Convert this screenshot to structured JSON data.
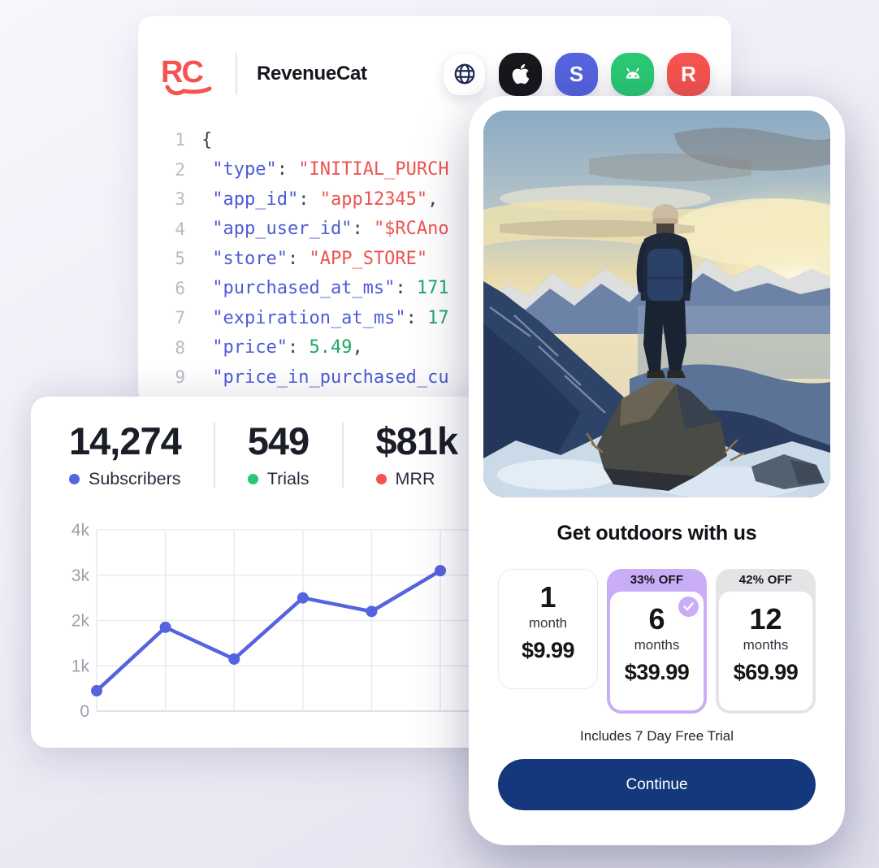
{
  "colors": {
    "blue": "#5563DE",
    "green": "#2BC873",
    "red": "#F4534F",
    "navy_button": "#14387B",
    "purple_badge": "#C9ADF6",
    "gray_badge": "#E4E4E6",
    "code_key": "#4D5CD5",
    "code_string": "#EE5350",
    "code_number": "#1FA865",
    "code_punct": "#3A4151",
    "line_number": "#B6BAC4",
    "axis_label": "#9AA1AD",
    "grid_line": "#E9EBF2",
    "axis_line": "#D5D8E2",
    "ink": "#15171E"
  },
  "header": {
    "logo_text": "RC",
    "brand": "RevenueCat",
    "icons": [
      {
        "name": "globe-icon"
      },
      {
        "name": "apple-icon"
      },
      {
        "name": "stripe-icon",
        "letter": "S"
      },
      {
        "name": "android-icon"
      },
      {
        "name": "revenuecat-icon",
        "letter": "R"
      }
    ]
  },
  "code": {
    "lines": [
      {
        "n": "1",
        "tokens": [
          {
            "t": "p",
            "v": "{"
          }
        ]
      },
      {
        "n": "2",
        "tokens": [
          {
            "t": "k",
            "v": " \"type\""
          },
          {
            "t": "p",
            "v": ": "
          },
          {
            "t": "s",
            "v": "\"INITIAL_PURCH"
          }
        ]
      },
      {
        "n": "3",
        "tokens": [
          {
            "t": "k",
            "v": " \"app_id\""
          },
          {
            "t": "p",
            "v": ": "
          },
          {
            "t": "s",
            "v": "\"app12345\""
          },
          {
            "t": "p",
            "v": ","
          }
        ]
      },
      {
        "n": "4",
        "tokens": [
          {
            "t": "k",
            "v": " \"app_user_id\""
          },
          {
            "t": "p",
            "v": ": "
          },
          {
            "t": "s",
            "v": "\"$RCAno"
          }
        ]
      },
      {
        "n": "5",
        "tokens": [
          {
            "t": "k",
            "v": " \"store\""
          },
          {
            "t": "p",
            "v": ": "
          },
          {
            "t": "s",
            "v": "\"APP_STORE\""
          }
        ]
      },
      {
        "n": "6",
        "tokens": [
          {
            "t": "k",
            "v": " \"purchased_at_ms\""
          },
          {
            "t": "p",
            "v": ": "
          },
          {
            "t": "n",
            "v": "171"
          }
        ]
      },
      {
        "n": "7",
        "tokens": [
          {
            "t": "k",
            "v": " \"expiration_at_ms\""
          },
          {
            "t": "p",
            "v": ": "
          },
          {
            "t": "n",
            "v": "17"
          }
        ]
      },
      {
        "n": "8",
        "tokens": [
          {
            "t": "k",
            "v": " \"price\""
          },
          {
            "t": "p",
            "v": ": "
          },
          {
            "t": "n",
            "v": "5.49"
          },
          {
            "t": "p",
            "v": ","
          }
        ]
      },
      {
        "n": "9",
        "tokens": [
          {
            "t": "k",
            "v": " \"price_in_purchased_cu"
          }
        ]
      }
    ]
  },
  "metrics": [
    {
      "value": "14,274",
      "label": "Subscribers",
      "color": "#5563DE"
    },
    {
      "value": "549",
      "label": "Trials",
      "color": "#2BC873"
    },
    {
      "value": "$81k",
      "label": "MRR",
      "color": "#F4534F"
    }
  ],
  "chart_data": {
    "type": "line",
    "x": [
      0,
      1,
      2,
      3,
      4,
      5
    ],
    "values": [
      450,
      1850,
      1150,
      2500,
      2200,
      3100
    ],
    "series_name": "Subscribers",
    "ylim": [
      0,
      4000
    ],
    "yticks": [
      0,
      1000,
      2000,
      3000,
      4000
    ],
    "ytick_labels": [
      "0",
      "1k",
      "2k",
      "3k",
      "4k"
    ],
    "grid": true,
    "legend": "none",
    "line_color": "#5563DE"
  },
  "paywall": {
    "title": "Get outdoors with us",
    "plans": [
      {
        "badge": "",
        "badge_color": "",
        "duration_value": "1",
        "duration_unit": "month",
        "price": "$9.99",
        "selected": false
      },
      {
        "badge": "33% OFF",
        "badge_color": "#C9ADF6",
        "duration_value": "6",
        "duration_unit": "months",
        "price": "$39.99",
        "selected": true
      },
      {
        "badge": "42% OFF",
        "badge_color": "#E4E4E6",
        "duration_value": "12",
        "duration_unit": "months",
        "price": "$69.99",
        "selected": false
      }
    ],
    "trial_note": "Includes 7 Day Free Trial",
    "continue_label": "Continue"
  }
}
